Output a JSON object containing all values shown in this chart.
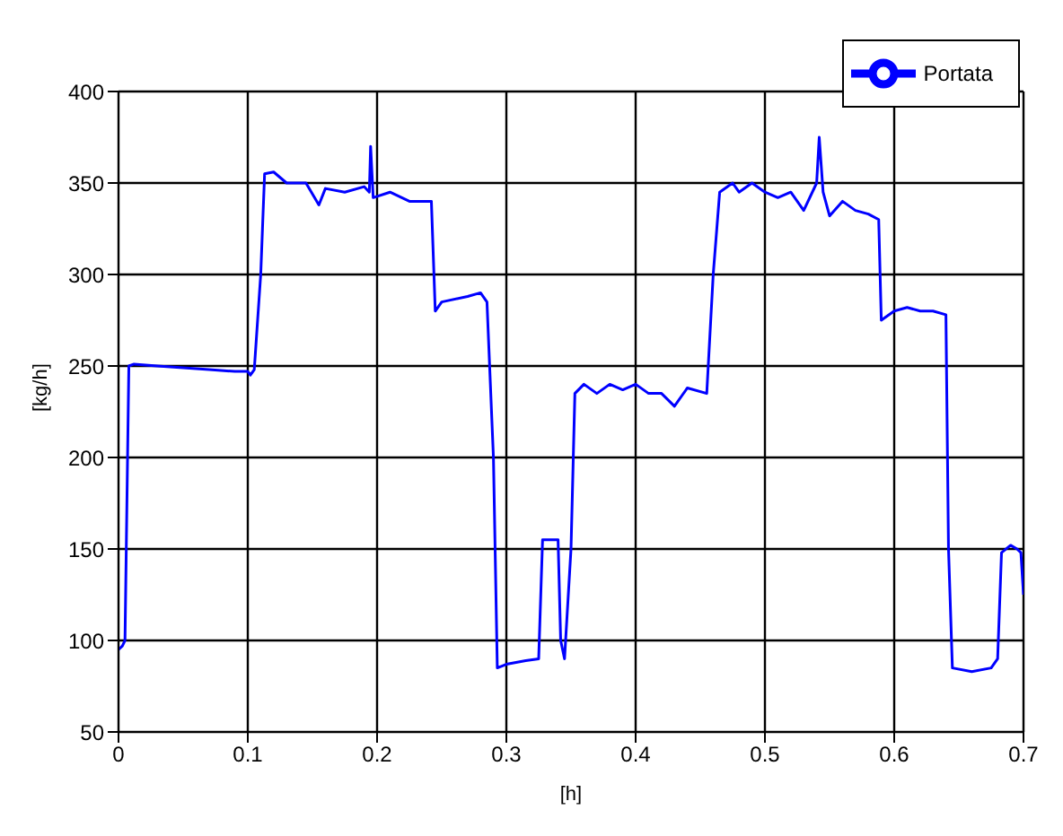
{
  "chart_data": {
    "type": "line",
    "xlabel": "[h]",
    "ylabel": "[kg/h]",
    "legend": "top right",
    "grid": true,
    "marker": "none",
    "line_style": "solid",
    "xlim": [
      0,
      0.7
    ],
    "xticks": [
      0,
      0.1,
      0.2,
      0.3,
      0.4,
      0.5,
      0.6,
      0.7
    ],
    "ylim": [
      50,
      400
    ],
    "yticks": [
      50,
      100,
      150,
      200,
      250,
      300,
      350,
      400
    ],
    "series": [
      {
        "name": "Portata",
        "color": "#0000ff",
        "x": [
          0,
          0.003,
          0.005,
          0.008,
          0.012,
          0.03,
          0.05,
          0.07,
          0.09,
          0.1,
          0.102,
          0.105,
          0.11,
          0.113,
          0.12,
          0.13,
          0.145,
          0.155,
          0.16,
          0.175,
          0.19,
          0.194,
          0.195,
          0.197,
          0.21,
          0.225,
          0.24,
          0.242,
          0.245,
          0.25,
          0.27,
          0.28,
          0.285,
          0.29,
          0.293,
          0.3,
          0.315,
          0.325,
          0.328,
          0.34,
          0.342,
          0.345,
          0.35,
          0.353,
          0.36,
          0.37,
          0.38,
          0.39,
          0.4,
          0.41,
          0.42,
          0.43,
          0.44,
          0.455,
          0.46,
          0.465,
          0.475,
          0.48,
          0.49,
          0.5,
          0.51,
          0.52,
          0.53,
          0.54,
          0.542,
          0.545,
          0.55,
          0.56,
          0.57,
          0.58,
          0.588,
          0.59,
          0.6,
          0.61,
          0.62,
          0.63,
          0.64,
          0.642,
          0.645,
          0.66,
          0.675,
          0.68,
          0.683,
          0.69,
          0.695,
          0.698,
          0.7
        ],
        "values": [
          95,
          97,
          100,
          250,
          251,
          250,
          249,
          248,
          247,
          247,
          245,
          248,
          300,
          355,
          356,
          350,
          350,
          338,
          347,
          345,
          348,
          345,
          370,
          342,
          345,
          340,
          340,
          340,
          280,
          285,
          288,
          290,
          285,
          200,
          85,
          87,
          89,
          90,
          155,
          155,
          100,
          90,
          150,
          235,
          240,
          235,
          240,
          237,
          240,
          235,
          235,
          228,
          238,
          235,
          300,
          345,
          350,
          345,
          350,
          345,
          342,
          345,
          335,
          350,
          375,
          345,
          332,
          340,
          335,
          333,
          330,
          275,
          280,
          282,
          280,
          280,
          278,
          150,
          85,
          83,
          85,
          90,
          148,
          152,
          150,
          148,
          125
        ]
      }
    ]
  }
}
